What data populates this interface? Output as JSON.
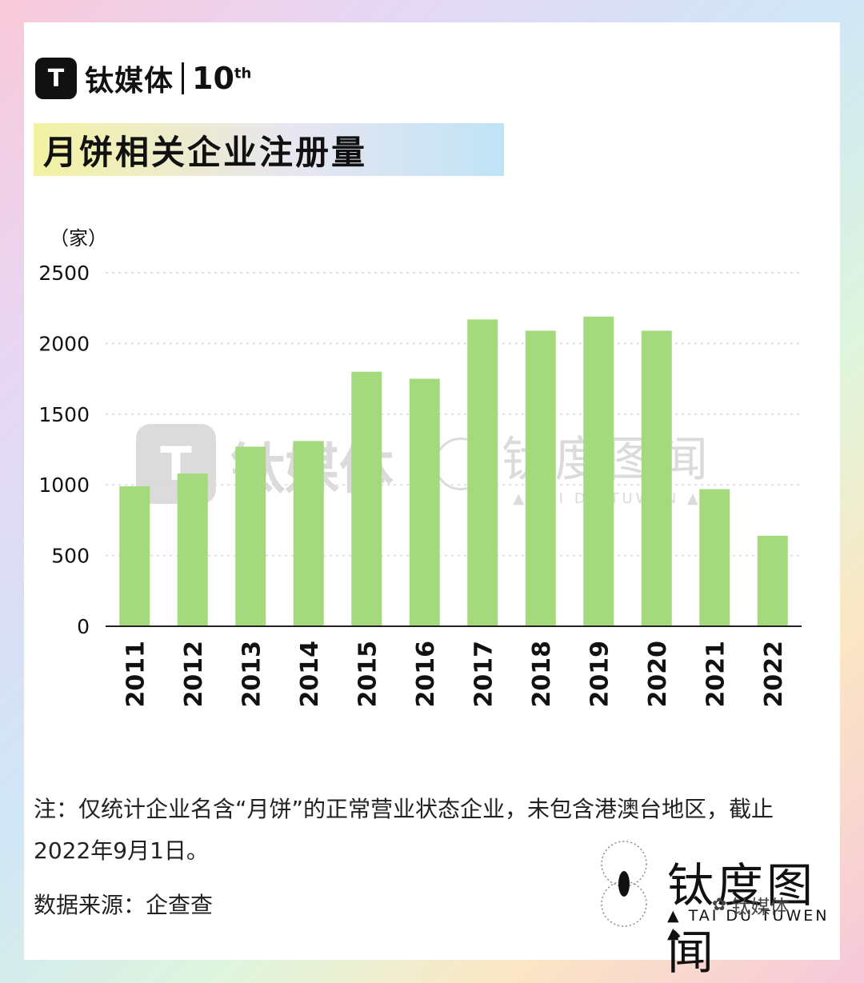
{
  "brand": {
    "logo_glyph": "T",
    "name": "钛媒体",
    "ten": "10",
    "ten_sup": "th"
  },
  "title": "月饼相关企业注册量",
  "unit": "（家）",
  "chart_data": {
    "type": "bar",
    "title": "月饼相关企业注册量",
    "ylabel": "（家）",
    "xlabel": "",
    "categories": [
      "2011",
      "2012",
      "2013",
      "2014",
      "2015",
      "2016",
      "2017",
      "2018",
      "2019",
      "2020",
      "2021",
      "2022"
    ],
    "values": [
      990,
      1080,
      1270,
      1310,
      1800,
      1750,
      2170,
      2090,
      2190,
      2090,
      970,
      640
    ],
    "ylim": [
      0,
      2500
    ],
    "yticks": [
      0,
      500,
      1000,
      1500,
      2000,
      2500
    ],
    "yticklabels": [
      "0",
      "500",
      "1000",
      "1500",
      "2000",
      "2500"
    ],
    "bar_color": "#a5d97e",
    "grid": "dotted-horizontal",
    "legend": "none"
  },
  "watermark": {
    "name": "钛媒体",
    "right_cn": "钛度图闻",
    "right_en": "▲ TAI DU TUWEN ▲"
  },
  "note": "注：仅统计企业名含“月饼”的正常营业状态企业，未包含港澳台地区，截止2022年9月1日。",
  "source": "数据来源：企查查",
  "footer_logo": {
    "cn": "钛度图闻",
    "en": "▲ TAI DU TUWEN ▲"
  },
  "wechat": {
    "icon": "wechat-icon",
    "label": "钛媒体"
  }
}
